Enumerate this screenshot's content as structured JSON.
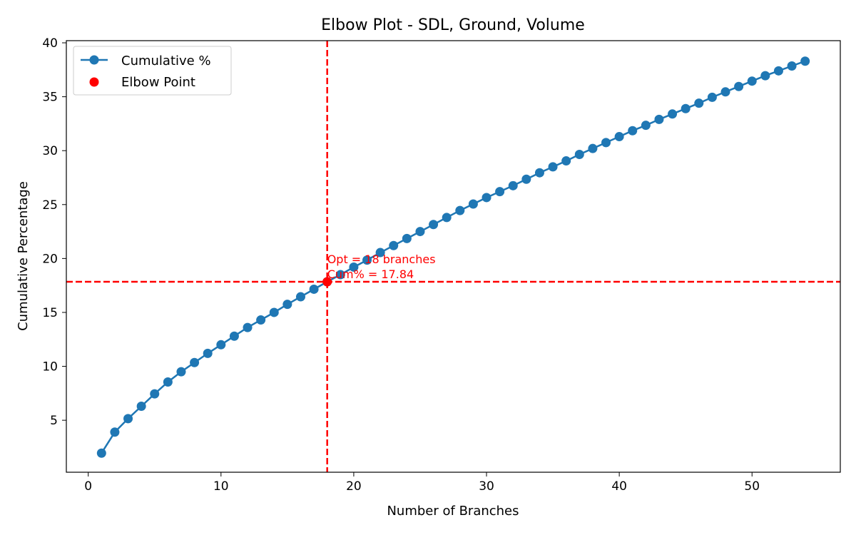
{
  "chart_data": {
    "type": "line",
    "title": "Elbow Plot - SDL, Ground, Volume",
    "xlabel": "Number of Branches",
    "ylabel": "Cumulative Percentage",
    "xlim": [
      -1.65,
      56.65
    ],
    "ylim": [
      0.18,
      40.2
    ],
    "x_ticks": [
      0,
      10,
      20,
      30,
      40,
      50
    ],
    "y_ticks": [
      5,
      10,
      15,
      20,
      25,
      30,
      35,
      40
    ],
    "grid": false,
    "legend_position": "top-left",
    "series": [
      {
        "name": "Cumulative %",
        "color": "#1f77b4",
        "marker": "circle",
        "x": [
          1,
          2,
          3,
          4,
          5,
          6,
          7,
          8,
          9,
          10,
          11,
          12,
          13,
          14,
          15,
          16,
          17,
          18,
          19,
          20,
          21,
          22,
          23,
          24,
          25,
          26,
          27,
          28,
          29,
          30,
          31,
          32,
          33,
          34,
          35,
          36,
          37,
          38,
          39,
          40,
          41,
          42,
          43,
          44,
          45,
          46,
          47,
          48,
          49,
          50,
          51,
          52,
          53,
          54
        ],
        "y": [
          1.95,
          3.9,
          5.15,
          6.3,
          7.45,
          8.55,
          9.5,
          10.35,
          11.2,
          12.0,
          12.8,
          13.6,
          14.3,
          15.0,
          15.75,
          16.45,
          17.15,
          17.84,
          18.5,
          19.2,
          19.85,
          20.55,
          21.2,
          21.85,
          22.5,
          23.15,
          23.8,
          24.45,
          25.05,
          25.65,
          26.2,
          26.75,
          27.35,
          27.95,
          28.5,
          29.05,
          29.65,
          30.2,
          30.75,
          31.3,
          31.85,
          32.35,
          32.9,
          33.4,
          33.9,
          34.4,
          34.95,
          35.45,
          35.95,
          36.45,
          36.95,
          37.4,
          37.85,
          38.3
        ]
      }
    ],
    "elbow": {
      "name": "Elbow Point",
      "x": 18,
      "y": 17.84,
      "color": "#ff0000",
      "annotation_lines": [
        "Opt = 18 branches",
        "Cum% = 17.84"
      ]
    }
  }
}
